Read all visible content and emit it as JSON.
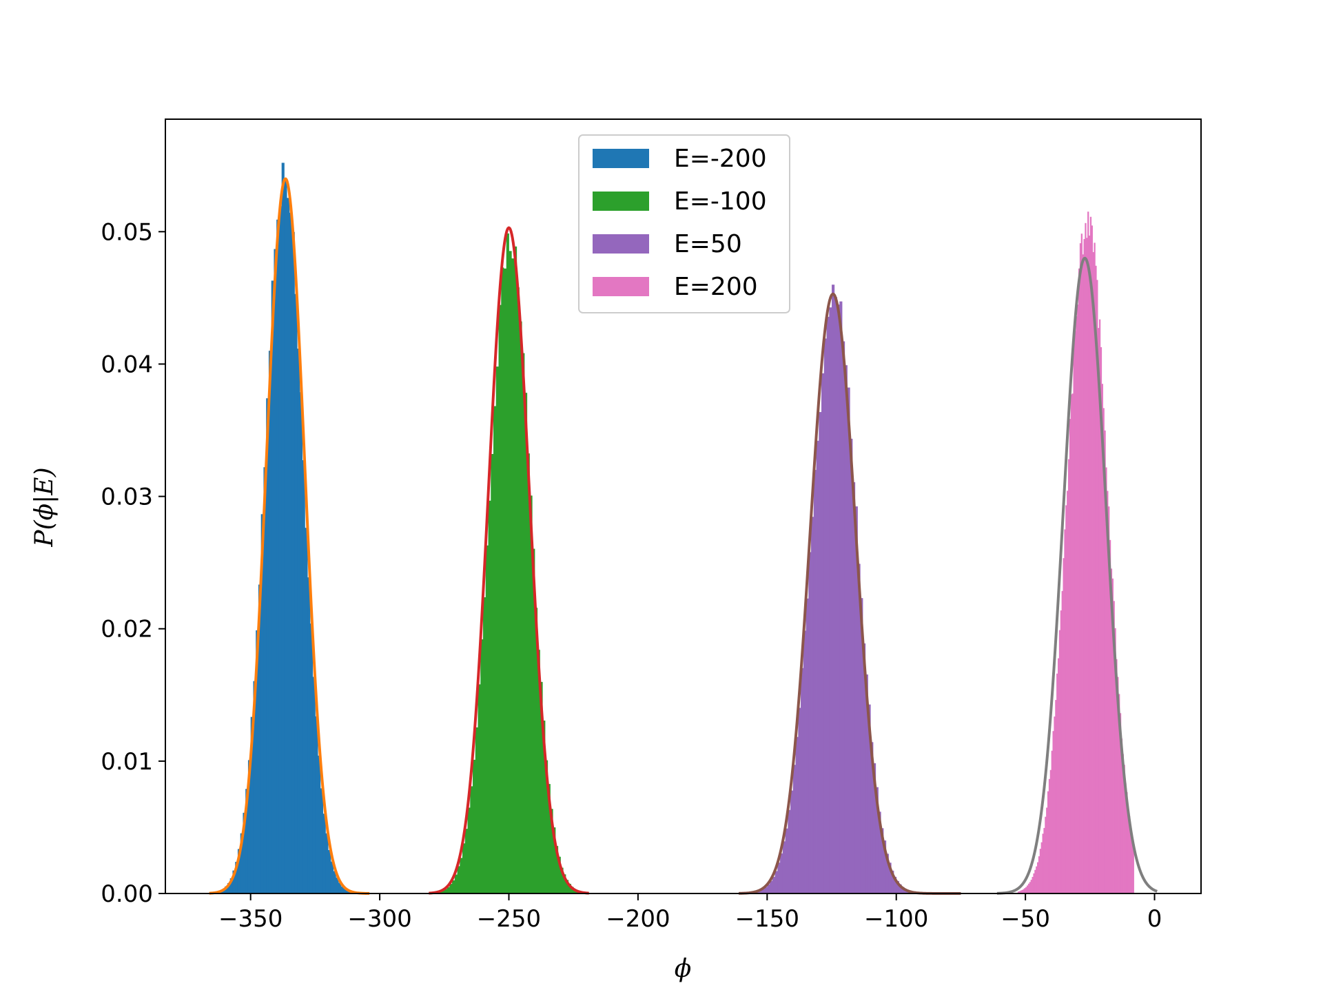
{
  "chart_data": {
    "type": "bar",
    "title": "",
    "xlabel": "ϕ",
    "ylabel": "P(ϕ|E)",
    "xlim": [
      -383,
      18
    ],
    "ylim": [
      0,
      0.0585
    ],
    "xticks": [
      -350,
      -300,
      -250,
      -200,
      -150,
      -100,
      -50,
      0
    ],
    "xtick_labels": [
      "−350",
      "−300",
      "−250",
      "−200",
      "−150",
      "−100",
      "−50",
      "0"
    ],
    "yticks": [
      0,
      0.01,
      0.02,
      0.03,
      0.04,
      0.05
    ],
    "ytick_labels": [
      "0.00",
      "0.01",
      "0.02",
      "0.03",
      "0.04",
      "0.05"
    ],
    "grid": false,
    "legend": {
      "placement": "upper-center"
    },
    "series": [
      {
        "name": "E=-200",
        "kind": "histogram",
        "color": "#1f77b4",
        "mean": -337,
        "sd": 7.4,
        "peak": 0.0545,
        "x_range": [
          -363,
          -305
        ],
        "bin_width": 1,
        "fit": {
          "color": "#ff7f0e",
          "mean": -336.5,
          "sd": 7.4,
          "peak": 0.054,
          "x_range": [
            -366,
            -304
          ]
        }
      },
      {
        "name": "E=-100",
        "kind": "histogram",
        "color": "#2ca02c",
        "mean": -249.5,
        "sd": 7.9,
        "peak": 0.0495,
        "x_range": [
          -280,
          -220
        ],
        "bin_width": 1,
        "fit": {
          "color": "#d62728",
          "mean": -250,
          "sd": 7.9,
          "peak": 0.0503,
          "x_range": [
            -281,
            -219
          ]
        }
      },
      {
        "name": "E=50",
        "kind": "histogram",
        "color": "#9467bd",
        "mean": -124,
        "sd": 8.8,
        "peak": 0.0455,
        "x_range": [
          -158,
          -76
        ],
        "bin_width": 1,
        "fit": {
          "color": "#8c564b",
          "mean": -124.5,
          "sd": 8.8,
          "peak": 0.0453,
          "x_range": [
            -161,
            -75
          ]
        }
      },
      {
        "name": "E=200",
        "kind": "histogram",
        "color": "#e377c2",
        "mean": -26,
        "sd": 7.8,
        "peak": 0.051,
        "x_range": [
          -53,
          -8
        ],
        "bin_width": 0.5,
        "fit": {
          "color": "#7f7f7f",
          "mean": -27,
          "sd": 8.3,
          "peak": 0.048,
          "x_range": [
            -61,
            1
          ]
        }
      }
    ]
  }
}
